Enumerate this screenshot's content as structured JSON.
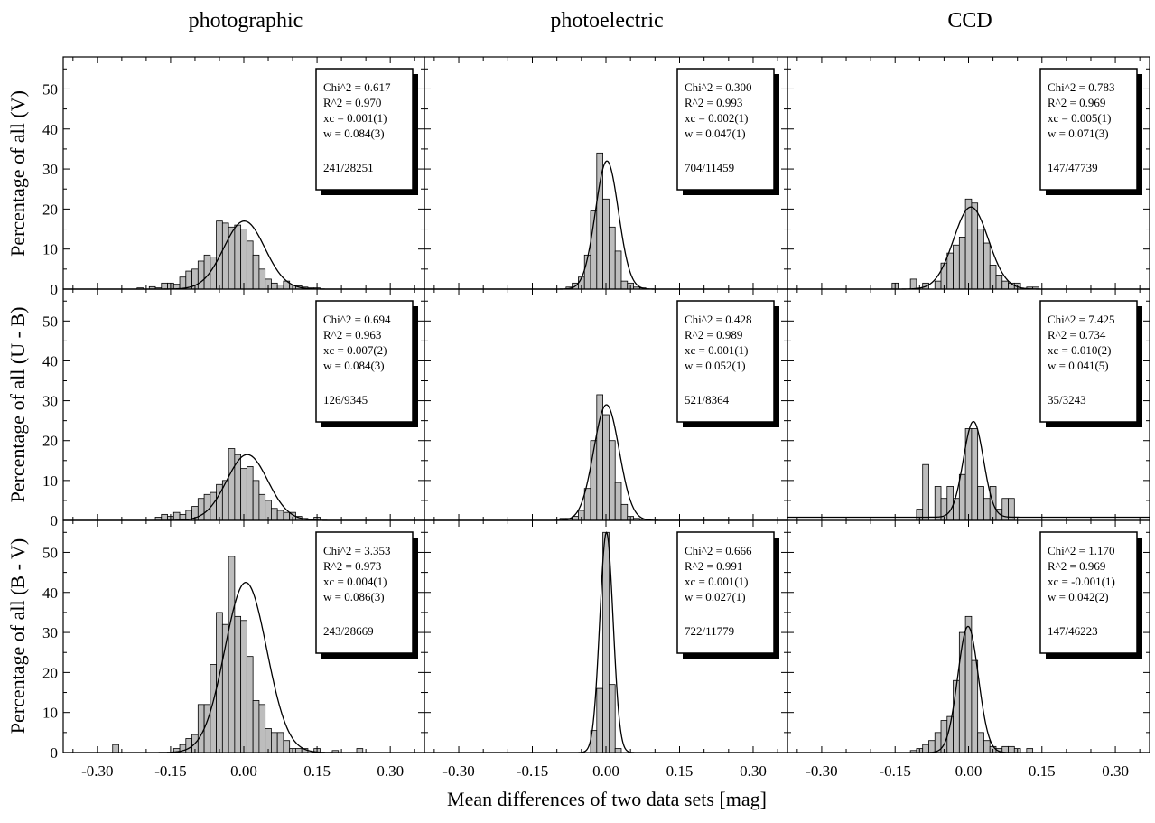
{
  "figure": {
    "column_titles": [
      "photographic",
      "photoelectric",
      "CCD"
    ],
    "row_ylabels": [
      "Percentage of all (V)",
      "Percentage of all (U - B)",
      "Percentage of all (B - V)"
    ],
    "xlabel": "Mean differences of two data sets [mag]",
    "x_tick_labels": [
      "-0.30",
      "-0.15",
      "0.00",
      "0.15",
      "0.30"
    ],
    "y_tick_labels": [
      "0",
      "10",
      "20",
      "30",
      "40",
      "50"
    ]
  },
  "chart_data": [
    {
      "type": "bar",
      "row": 0,
      "col": 0,
      "column_title": "photographic",
      "ylabel": "Percentage of all (V)",
      "xlim": [
        -0.37,
        0.37
      ],
      "ylim": [
        0,
        58
      ],
      "bin_width": 0.0125,
      "bins_x": [
        -0.2125,
        -0.1875,
        -0.175,
        -0.1625,
        -0.15,
        -0.1375,
        -0.125,
        -0.1125,
        -0.1,
        -0.0875,
        -0.075,
        -0.0625,
        -0.05,
        -0.0375,
        -0.025,
        -0.0125,
        0.0,
        0.0125,
        0.025,
        0.0375,
        0.05,
        0.0625,
        0.075,
        0.0875,
        0.1,
        0.1125,
        0.125,
        0.1375,
        0.15
      ],
      "values": [
        0.3,
        0.6,
        0.3,
        1.5,
        1.5,
        1.2,
        3.0,
        4.5,
        5.0,
        7.0,
        8.5,
        8.0,
        17.0,
        16.5,
        15.5,
        16.0,
        15.0,
        12.0,
        8.5,
        5.0,
        2.5,
        1.5,
        1.0,
        2.0,
        1.0,
        0.8,
        0.5,
        0.3,
        0.3
      ],
      "fit": {
        "xc": 0.001,
        "w": 0.084,
        "peak": 17
      },
      "stats": {
        "chi2": "Chi^2 = 0.617",
        "r2": "R^2 = 0.970",
        "xc": "xc = 0.001(1)",
        "w": "w = 0.084(3)",
        "counts": "241/28251"
      }
    },
    {
      "type": "bar",
      "row": 0,
      "col": 1,
      "column_title": "photoelectric",
      "ylabel": "Percentage of all (V)",
      "xlim": [
        -0.37,
        0.37
      ],
      "ylim": [
        0,
        58
      ],
      "bin_width": 0.0125,
      "bins_x": [
        -0.075,
        -0.0625,
        -0.05,
        -0.0375,
        -0.025,
        -0.0125,
        0.0,
        0.0125,
        0.025,
        0.0375,
        0.05,
        0.0625,
        0.075
      ],
      "values": [
        0.5,
        1.5,
        3.0,
        8.5,
        19.5,
        34.0,
        22.5,
        15.5,
        9.5,
        2.0,
        1.5,
        0.5,
        0.3
      ],
      "fit": {
        "xc": 0.002,
        "w": 0.047,
        "peak": 32
      },
      "stats": {
        "chi2": "Chi^2 = 0.300",
        "r2": "R^2 = 0.993",
        "xc": "xc = 0.002(1)",
        "w": "w = 0.047(1)",
        "counts": "704/11459"
      }
    },
    {
      "type": "bar",
      "row": 0,
      "col": 2,
      "column_title": "CCD",
      "ylabel": "Percentage of all (V)",
      "xlim": [
        -0.37,
        0.37
      ],
      "ylim": [
        0,
        58
      ],
      "bin_width": 0.0125,
      "bins_x": [
        -0.15,
        -0.1125,
        -0.0875,
        -0.0625,
        -0.05,
        -0.0375,
        -0.025,
        -0.0125,
        0.0,
        0.0125,
        0.025,
        0.0375,
        0.05,
        0.0625,
        0.075,
        0.0875,
        0.1,
        0.125,
        0.1375
      ],
      "values": [
        1.5,
        2.5,
        1.5,
        2.0,
        6.5,
        9.0,
        11.0,
        13.0,
        22.5,
        21.5,
        15.0,
        11.5,
        6.0,
        3.5,
        2.0,
        1.5,
        1.5,
        0.5,
        0.5
      ],
      "fit": {
        "xc": 0.005,
        "w": 0.071,
        "peak": 20.5
      },
      "stats": {
        "chi2": "Chi^2 = 0.783",
        "r2": "R^2 = 0.969",
        "xc": "xc = 0.005(1)",
        "w": "w = 0.071(3)",
        "counts": "147/47739"
      }
    },
    {
      "type": "bar",
      "row": 1,
      "col": 0,
      "column_title": "photographic",
      "ylabel": "Percentage of all (U - B)",
      "xlim": [
        -0.37,
        0.37
      ],
      "ylim": [
        0,
        58
      ],
      "bin_width": 0.0125,
      "bins_x": [
        -0.175,
        -0.1625,
        -0.15,
        -0.1375,
        -0.125,
        -0.1125,
        -0.1,
        -0.0875,
        -0.075,
        -0.0625,
        -0.05,
        -0.0375,
        -0.025,
        -0.0125,
        0.0,
        0.0125,
        0.025,
        0.0375,
        0.05,
        0.0625,
        0.075,
        0.0875,
        0.1,
        0.1125,
        0.125,
        0.15
      ],
      "values": [
        0.8,
        1.5,
        1.0,
        2.0,
        1.5,
        2.5,
        3.5,
        5.5,
        6.5,
        7.0,
        9.0,
        10.0,
        18.0,
        16.5,
        13.0,
        13.5,
        10.0,
        6.5,
        5.0,
        3.0,
        2.5,
        2.0,
        2.0,
        1.0,
        0.5,
        0.8
      ],
      "fit": {
        "xc": 0.007,
        "w": 0.084,
        "peak": 16.5
      },
      "stats": {
        "chi2": "Chi^2 = 0.694",
        "r2": "R^2 = 0.963",
        "xc": "xc = 0.007(2)",
        "w": "w = 0.084(3)",
        "counts": "126/9345"
      }
    },
    {
      "type": "bar",
      "row": 1,
      "col": 1,
      "column_title": "photoelectric",
      "ylabel": "Percentage of all (U - B)",
      "xlim": [
        -0.37,
        0.37
      ],
      "ylim": [
        0,
        58
      ],
      "bin_width": 0.0125,
      "bins_x": [
        -0.0875,
        -0.075,
        -0.0625,
        -0.05,
        -0.0375,
        -0.025,
        -0.0125,
        0.0,
        0.0125,
        0.025,
        0.0375,
        0.05,
        0.0625,
        0.075
      ],
      "values": [
        0.5,
        0.5,
        1.0,
        2.5,
        8.0,
        20.0,
        31.5,
        26.5,
        20.0,
        9.5,
        4.0,
        1.0,
        0.5,
        0.3
      ],
      "fit": {
        "xc": 0.001,
        "w": 0.052,
        "peak": 29
      },
      "stats": {
        "chi2": "Chi^2 = 0.428",
        "r2": "R^2 = 0.989",
        "xc": "xc = 0.001(1)",
        "w": "w = 0.052(1)",
        "counts": "521/8364"
      }
    },
    {
      "type": "bar",
      "row": 1,
      "col": 2,
      "column_title": "CCD",
      "ylabel": "Percentage of all (U - B)",
      "xlim": [
        -0.37,
        0.37
      ],
      "ylim": [
        0,
        58
      ],
      "bin_width": 0.0125,
      "bins_x": [
        -0.1,
        -0.0875,
        -0.0625,
        -0.05,
        -0.0375,
        -0.025,
        -0.0125,
        0.0,
        0.0125,
        0.025,
        0.0375,
        0.05,
        0.0625,
        0.075,
        0.0875,
        0.1
      ],
      "values": [
        2.8,
        14.0,
        8.5,
        5.5,
        8.5,
        5.5,
        11.5,
        23.0,
        23.0,
        8.5,
        5.5,
        8.5,
        2.8,
        5.5,
        5.5,
        0.0
      ],
      "fit": {
        "xc": 0.01,
        "w": 0.041,
        "peak": 24,
        "offset": 0.8
      },
      "stats": {
        "chi2": "Chi^2 = 7.425",
        "r2": "R^2 = 0.734",
        "xc": "xc = 0.010(2)",
        "w": "w = 0.041(5)",
        "counts": "35/3243"
      }
    },
    {
      "type": "bar",
      "row": 2,
      "col": 0,
      "column_title": "photographic",
      "ylabel": "Percentage of all (B - V)",
      "xlim": [
        -0.37,
        0.37
      ],
      "ylim": [
        0,
        58
      ],
      "bin_width": 0.0125,
      "bins_x": [
        -0.2625,
        -0.1375,
        -0.125,
        -0.1125,
        -0.1,
        -0.0875,
        -0.075,
        -0.0625,
        -0.05,
        -0.0375,
        -0.025,
        -0.0125,
        0.0,
        0.0125,
        0.025,
        0.0375,
        0.05,
        0.0625,
        0.075,
        0.0875,
        0.1,
        0.1125,
        0.125,
        0.15,
        0.1875,
        0.2375
      ],
      "values": [
        2.0,
        1.0,
        2.0,
        3.5,
        4.5,
        12.0,
        12.0,
        22.0,
        35.0,
        32.0,
        49.0,
        34.0,
        33.0,
        24.0,
        13.0,
        12.0,
        6.0,
        5.0,
        5.0,
        3.0,
        1.0,
        1.0,
        1.0,
        1.0,
        0.5,
        1.0
      ],
      "fit": {
        "xc": 0.004,
        "w": 0.086,
        "peak": 42.5
      },
      "stats": {
        "chi2": "Chi^2 = 3.353",
        "r2": "R^2 = 0.973",
        "xc": "xc = 0.004(1)",
        "w": "w = 0.086(3)",
        "counts": "243/28669"
      }
    },
    {
      "type": "bar",
      "row": 2,
      "col": 1,
      "column_title": "photoelectric",
      "ylabel": "Percentage of all (B - V)",
      "xlim": [
        -0.37,
        0.37
      ],
      "ylim": [
        0,
        58
      ],
      "bin_width": 0.0125,
      "bins_x": [
        -0.025,
        -0.0125,
        0.0,
        0.0125,
        0.025
      ],
      "values": [
        5.5,
        16.0,
        55.0,
        17.0,
        1.0
      ],
      "fit": {
        "xc": 0.001,
        "w": 0.027,
        "peak": 55
      },
      "stats": {
        "chi2": "Chi^2 = 0.666",
        "r2": "R^2 = 0.991",
        "xc": "xc = 0.001(1)",
        "w": "w = 0.027(1)",
        "counts": "722/11779"
      }
    },
    {
      "type": "bar",
      "row": 2,
      "col": 2,
      "column_title": "CCD",
      "ylabel": "Percentage of all (B - V)",
      "xlim": [
        -0.37,
        0.37
      ],
      "ylim": [
        0,
        58
      ],
      "bin_width": 0.0125,
      "bins_x": [
        -0.1125,
        -0.1,
        -0.0875,
        -0.075,
        -0.0625,
        -0.05,
        -0.0375,
        -0.025,
        -0.0125,
        0.0,
        0.0125,
        0.025,
        0.0375,
        0.05,
        0.0625,
        0.075,
        0.0875,
        0.1,
        0.125
      ],
      "values": [
        0.5,
        1.0,
        2.0,
        3.0,
        5.0,
        8.0,
        9.0,
        18.0,
        30.0,
        34.0,
        23.0,
        5.0,
        3.0,
        1.5,
        1.0,
        1.5,
        1.5,
        1.0,
        1.0
      ],
      "fit": {
        "xc": -0.001,
        "w": 0.042,
        "peak": 31.5
      },
      "stats": {
        "chi2": "Chi^2 = 1.170",
        "r2": "R^2 = 0.969",
        "xc": "xc = -0.001(1)",
        "w": "w = 0.042(2)",
        "counts": "147/46223"
      }
    }
  ]
}
